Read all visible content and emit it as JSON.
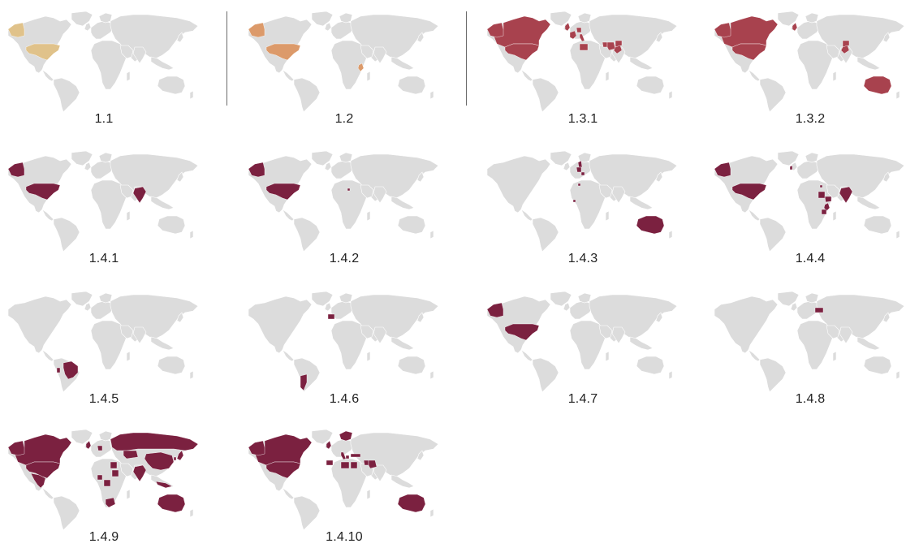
{
  "colors": {
    "land": "#dcdcdc",
    "tan": "#e0c28a",
    "orange": "#dc9a6a",
    "red": "#a8424e",
    "maroon": "#7b2140"
  },
  "panels": [
    {
      "label": "1.1",
      "color": "tan",
      "regions": [
        "alaska",
        "usa"
      ]
    },
    {
      "label": "1.2",
      "color": "orange",
      "regions": [
        "alaska",
        "usa",
        "kenya"
      ]
    },
    {
      "label": "1.3.1",
      "color": "red",
      "regions": [
        "canada",
        "alaska",
        "usa",
        "uk",
        "france",
        "germany",
        "italy",
        "iraq",
        "iran",
        "afghanistan",
        "pakistan",
        "libya"
      ]
    },
    {
      "label": "1.3.2",
      "color": "red",
      "regions": [
        "canada",
        "alaska",
        "usa",
        "uk",
        "afghanistan",
        "pakistan",
        "australia"
      ]
    },
    {
      "label": "1.4.1",
      "color": "maroon",
      "regions": [
        "alaska",
        "usa",
        "india"
      ]
    },
    {
      "label": "1.4.2",
      "color": "maroon",
      "regions": [
        "alaska",
        "usa",
        "libya_dot"
      ]
    },
    {
      "label": "1.4.3",
      "color": "maroon",
      "regions": [
        "denmark",
        "germany",
        "croatia",
        "tunisia_dot",
        "ghana_dot",
        "australia"
      ]
    },
    {
      "label": "1.4.4",
      "color": "maroon",
      "regions": [
        "alaska",
        "usa",
        "ireland",
        "sudan",
        "ethiopia",
        "kenya",
        "tanzania",
        "india",
        "egypt_dot"
      ]
    },
    {
      "label": "1.4.5",
      "color": "maroon",
      "regions": [
        "brazil",
        "peru_edge"
      ]
    },
    {
      "label": "1.4.6",
      "color": "maroon",
      "regions": [
        "spain",
        "argentina"
      ]
    },
    {
      "label": "1.4.7",
      "color": "maroon",
      "regions": [
        "alaska",
        "usa"
      ]
    },
    {
      "label": "1.4.8",
      "color": "maroon",
      "regions": [
        "ukraine"
      ]
    },
    {
      "label": "1.4.9",
      "color": "maroon",
      "regions": [
        "canada",
        "alaska",
        "usa",
        "mexico",
        "uk",
        "germany",
        "russia",
        "kazakhstan",
        "china",
        "india",
        "egypt",
        "sudan",
        "congo",
        "south_africa",
        "nigeria",
        "indonesia",
        "australia",
        "korea",
        "japan"
      ]
    },
    {
      "label": "1.4.10",
      "color": "maroon",
      "regions": [
        "canada",
        "alaska",
        "usa",
        "scandinavia",
        "uk",
        "italy",
        "greece",
        "turkey",
        "iraq",
        "iran",
        "morocco",
        "libya",
        "egypt",
        "australia"
      ]
    }
  ]
}
